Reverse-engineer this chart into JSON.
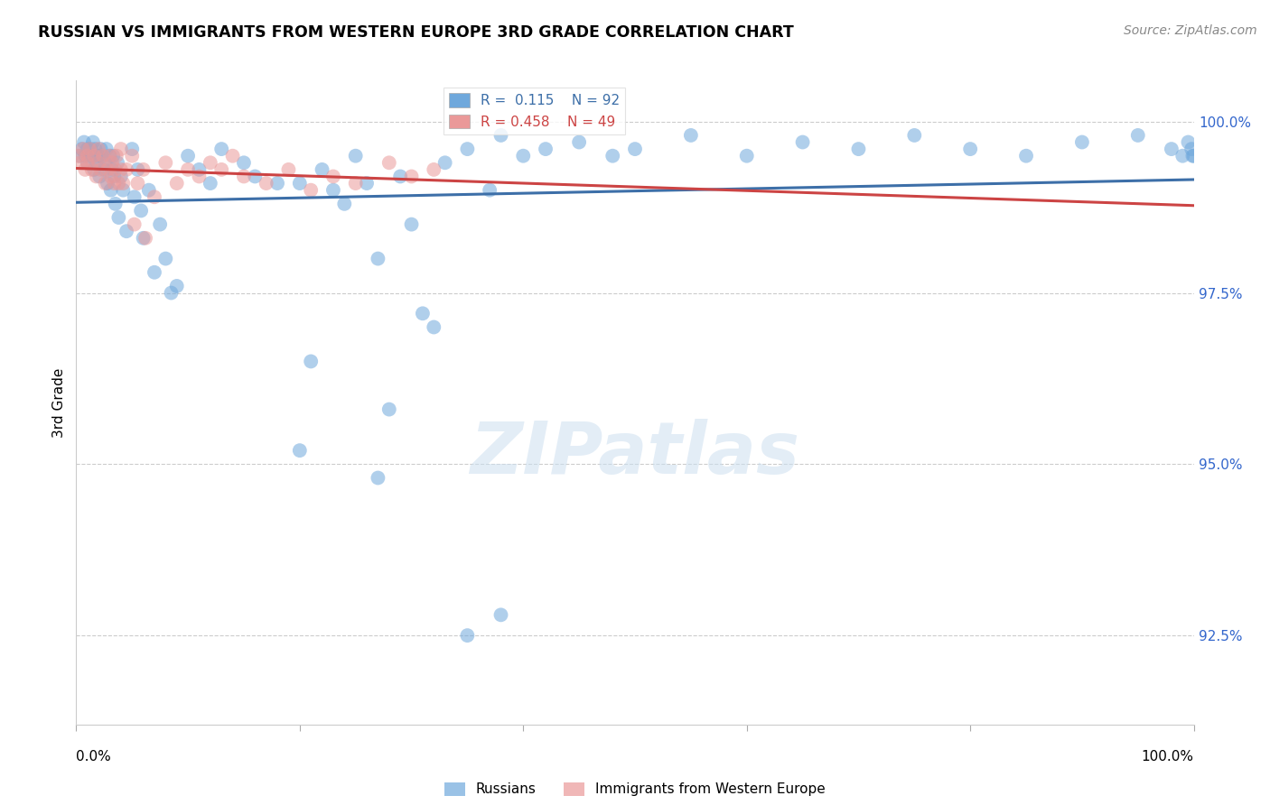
{
  "title": "RUSSIAN VS IMMIGRANTS FROM WESTERN EUROPE 3RD GRADE CORRELATION CHART",
  "source": "Source: ZipAtlas.com",
  "ylabel": "3rd Grade",
  "x_min": 0.0,
  "x_max": 100.0,
  "y_min": 91.2,
  "y_max": 100.6,
  "ytick_values": [
    92.5,
    95.0,
    97.5,
    100.0
  ],
  "russian_color": "#6fa8dc",
  "western_europe_color": "#ea9999",
  "russian_line_color": "#3d6fa8",
  "western_europe_line_color": "#cc4444",
  "watermark_text": "ZIPatlas",
  "russian_x": [
    0.3,
    0.5,
    0.7,
    0.8,
    1.0,
    1.0,
    1.2,
    1.3,
    1.4,
    1.5,
    1.6,
    1.7,
    1.8,
    1.9,
    2.0,
    2.1,
    2.2,
    2.3,
    2.5,
    2.6,
    2.7,
    2.8,
    3.0,
    3.1,
    3.2,
    3.3,
    3.4,
    3.5,
    3.7,
    3.8,
    4.0,
    4.2,
    4.5,
    5.0,
    5.2,
    5.5,
    5.8,
    6.0,
    6.5,
    7.0,
    7.5,
    8.0,
    8.5,
    9.0,
    10.0,
    11.0,
    12.0,
    13.0,
    15.0,
    16.0,
    18.0,
    20.0,
    21.0,
    22.0,
    23.0,
    24.0,
    25.0,
    26.0,
    27.0,
    28.0,
    29.0,
    30.0,
    31.0,
    32.0,
    33.0,
    35.0,
    37.0,
    38.0,
    40.0,
    42.0,
    45.0,
    48.0,
    50.0,
    55.0,
    60.0,
    65.0,
    70.0,
    75.0,
    80.0,
    85.0,
    90.0,
    95.0,
    98.0,
    99.0,
    99.5,
    99.8,
    99.9,
    100.0,
    20.0,
    27.0,
    35.0,
    38.0
  ],
  "russian_y": [
    99.5,
    99.6,
    99.7,
    99.5,
    99.6,
    99.4,
    99.5,
    99.6,
    99.5,
    99.7,
    99.3,
    99.6,
    99.4,
    99.5,
    99.5,
    99.2,
    99.6,
    99.5,
    99.3,
    99.4,
    99.6,
    99.1,
    99.5,
    99.0,
    99.3,
    99.5,
    99.2,
    98.8,
    99.4,
    98.6,
    99.2,
    99.0,
    98.4,
    99.6,
    98.9,
    99.3,
    98.7,
    98.3,
    99.0,
    97.8,
    98.5,
    98.0,
    97.5,
    97.6,
    99.5,
    99.3,
    99.1,
    99.6,
    99.4,
    99.2,
    99.1,
    99.1,
    96.5,
    99.3,
    99.0,
    98.8,
    99.5,
    99.1,
    98.0,
    95.8,
    99.2,
    98.5,
    97.2,
    97.0,
    99.4,
    99.6,
    99.0,
    99.8,
    99.5,
    99.6,
    99.7,
    99.5,
    99.6,
    99.8,
    99.5,
    99.7,
    99.6,
    99.8,
    99.6,
    99.5,
    99.7,
    99.8,
    99.6,
    99.5,
    99.7,
    99.6,
    99.5,
    99.5,
    95.2,
    94.8,
    92.5,
    92.8
  ],
  "western_x": [
    0.2,
    0.4,
    0.6,
    0.8,
    1.0,
    1.0,
    1.2,
    1.4,
    1.6,
    1.8,
    2.0,
    2.0,
    2.2,
    2.4,
    2.6,
    2.8,
    3.0,
    3.1,
    3.2,
    3.4,
    3.5,
    3.6,
    3.8,
    4.0,
    4.0,
    4.2,
    4.5,
    5.0,
    5.2,
    5.5,
    6.0,
    6.2,
    7.0,
    8.0,
    9.0,
    10.0,
    11.0,
    12.0,
    13.0,
    14.0,
    15.0,
    17.0,
    19.0,
    21.0,
    23.0,
    25.0,
    28.0,
    30.0,
    32.0
  ],
  "western_y": [
    99.5,
    99.4,
    99.6,
    99.3,
    99.5,
    99.4,
    99.6,
    99.3,
    99.5,
    99.2,
    99.4,
    99.6,
    99.3,
    99.5,
    99.1,
    99.3,
    99.5,
    99.2,
    99.4,
    99.1,
    99.3,
    99.5,
    99.1,
    99.3,
    99.6,
    99.1,
    99.3,
    99.5,
    98.5,
    99.1,
    99.3,
    98.3,
    98.9,
    99.4,
    99.1,
    99.3,
    99.2,
    99.4,
    99.3,
    99.5,
    99.2,
    99.1,
    99.3,
    99.0,
    99.2,
    99.1,
    99.4,
    99.2,
    99.3
  ]
}
